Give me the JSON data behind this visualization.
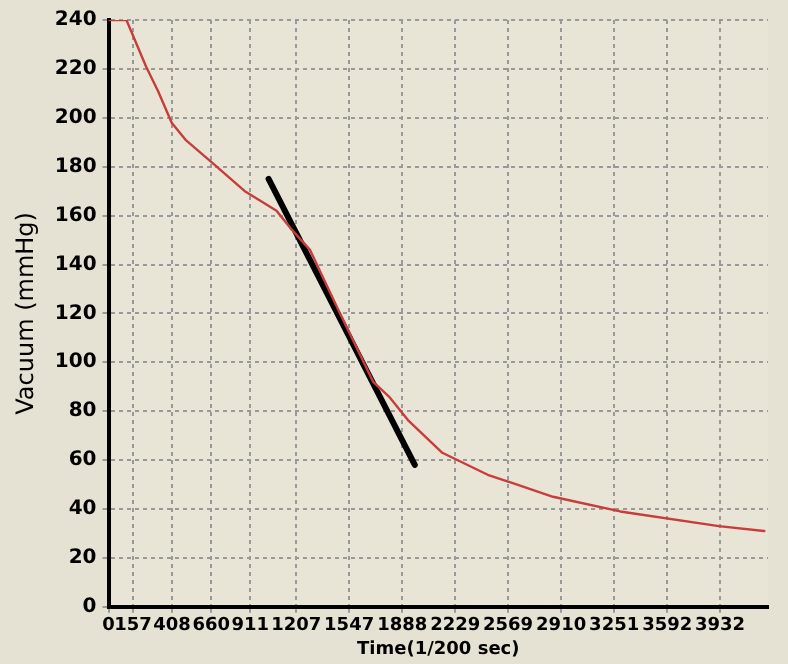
{
  "chart_data": {
    "type": "line",
    "xlabel": "Time(1/200 sec)",
    "ylabel": "Vacuum (mmHg)",
    "xlim": [
      0,
      4240
    ],
    "xticks": [
      0,
      157,
      408,
      660,
      911,
      1207,
      1547,
      1888,
      2229,
      2569,
      2910,
      3251,
      3592,
      3932
    ],
    "ylim": [
      0,
      240
    ],
    "yticks": [
      0,
      20,
      40,
      60,
      80,
      100,
      120,
      140,
      160,
      180,
      200,
      220,
      240
    ],
    "grid": true,
    "legend": false,
    "marker": "none",
    "series": [
      {
        "color": "#c83c3c",
        "x": [
          0,
          115,
          241,
          318,
          406,
          495,
          660,
          876,
          1080,
          1168,
          1295,
          1473,
          1702,
          1803,
          1930,
          2146,
          2438,
          2858,
          3290,
          3924,
          4216
        ],
        "values": [
          240,
          240,
          221,
          211,
          198,
          191,
          182,
          170,
          162,
          155,
          146,
          122,
          92,
          86,
          76,
          63,
          54,
          45,
          39,
          33,
          31
        ]
      },
      {
        "color": "#000000",
        "x": [
          1029,
          1969
        ],
        "values": [
          175,
          58
        ]
      }
    ]
  }
}
